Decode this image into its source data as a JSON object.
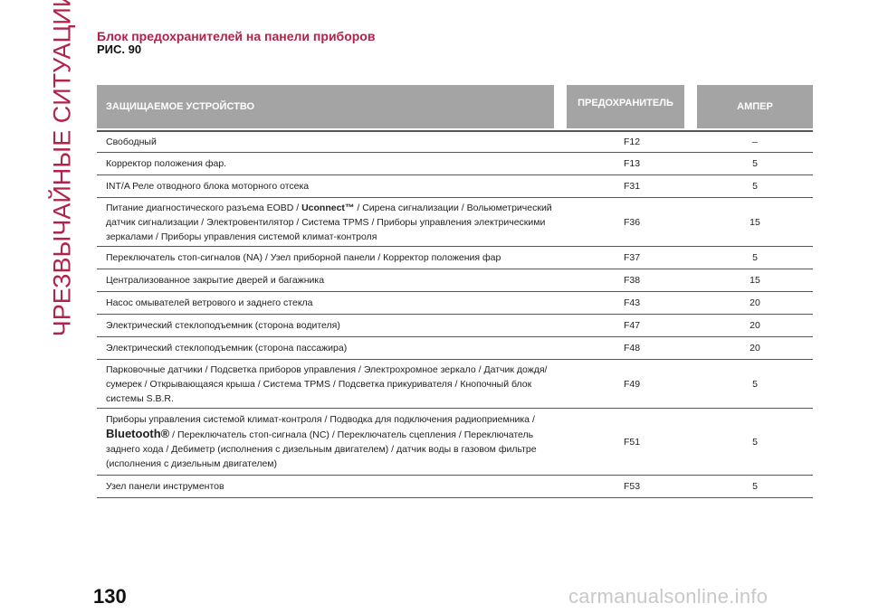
{
  "side_title": "ЧРЕЗВЫЧАЙНЫЕ СИТУАЦИИ",
  "heading": "Блок предохранителей на панели приборов",
  "figure_ref": "РИС. 90",
  "table": {
    "headers": {
      "device": "ЗАЩИЩАЕМОЕ УСТРОЙСТВО",
      "fuse": "ПРЕДОХРАНИТЕЛЬ",
      "amp": "АМПЕР"
    },
    "rows": [
      {
        "device": "Свободный",
        "fuse": "F12",
        "amp": "–"
      },
      {
        "device": "Корректор положения фар.",
        "fuse": "F13",
        "amp": "5"
      },
      {
        "device": "INT/A Реле отводного блока моторного отсека",
        "fuse": "F31",
        "amp": "5"
      },
      {
        "device_pre": "Питание диагностического разъема EOBD / ",
        "device_brand": "Uconnect™",
        "device_post": " / Сирена сигнализации / Вольюметрический датчик сигнализации / Электровентилятор / Система TPMS / Приборы управления электрическими зеркалами / Приборы управления системой климат-контроля",
        "fuse": "F36",
        "amp": "15"
      },
      {
        "device": "Переключатель стоп-сигналов (NA) / Узел приборной панели / Корректор положения фар",
        "fuse": "F37",
        "amp": "5"
      },
      {
        "device": "Централизованное закрытие дверей и багажника",
        "fuse": "F38",
        "amp": "15"
      },
      {
        "device": "Насос омывателей ветрового и заднего стекла",
        "fuse": "F43",
        "amp": "20"
      },
      {
        "device": "Электрический стеклоподъемник (сторона водителя)",
        "fuse": "F47",
        "amp": "20"
      },
      {
        "device": "Электрический стеклоподъемник (сторона пассажира)",
        "fuse": "F48",
        "amp": "20"
      },
      {
        "device": "Парковочные датчики / Подсветка приборов управления / Электрохромное зеркало / Датчик дождя/сумерек / Открывающаяся крыша / Система TPMS / Подсветка прикуривателя / Кнопочный блок системы S.B.R.",
        "fuse": "F49",
        "amp": "5"
      },
      {
        "device_pre": "Приборы управления системой климат-контроля / Подводка для подключения радиоприемника / ",
        "device_brand": "Bluetooth®",
        "device_post": " / Переключатель стоп-сигнала (NC) / Переключатель сцепления / Переключатель заднего хода / Дебиметр (исполнения с дизельным двигателем) / датчик воды в газовом фильтре (исполнения с дизельным двигателем)",
        "fuse": "F51",
        "amp": "5"
      },
      {
        "device": "Узел панели инструментов",
        "fuse": "F53",
        "amp": "5"
      }
    ]
  },
  "page_number": "130",
  "watermark": "carmanualsonline.info"
}
